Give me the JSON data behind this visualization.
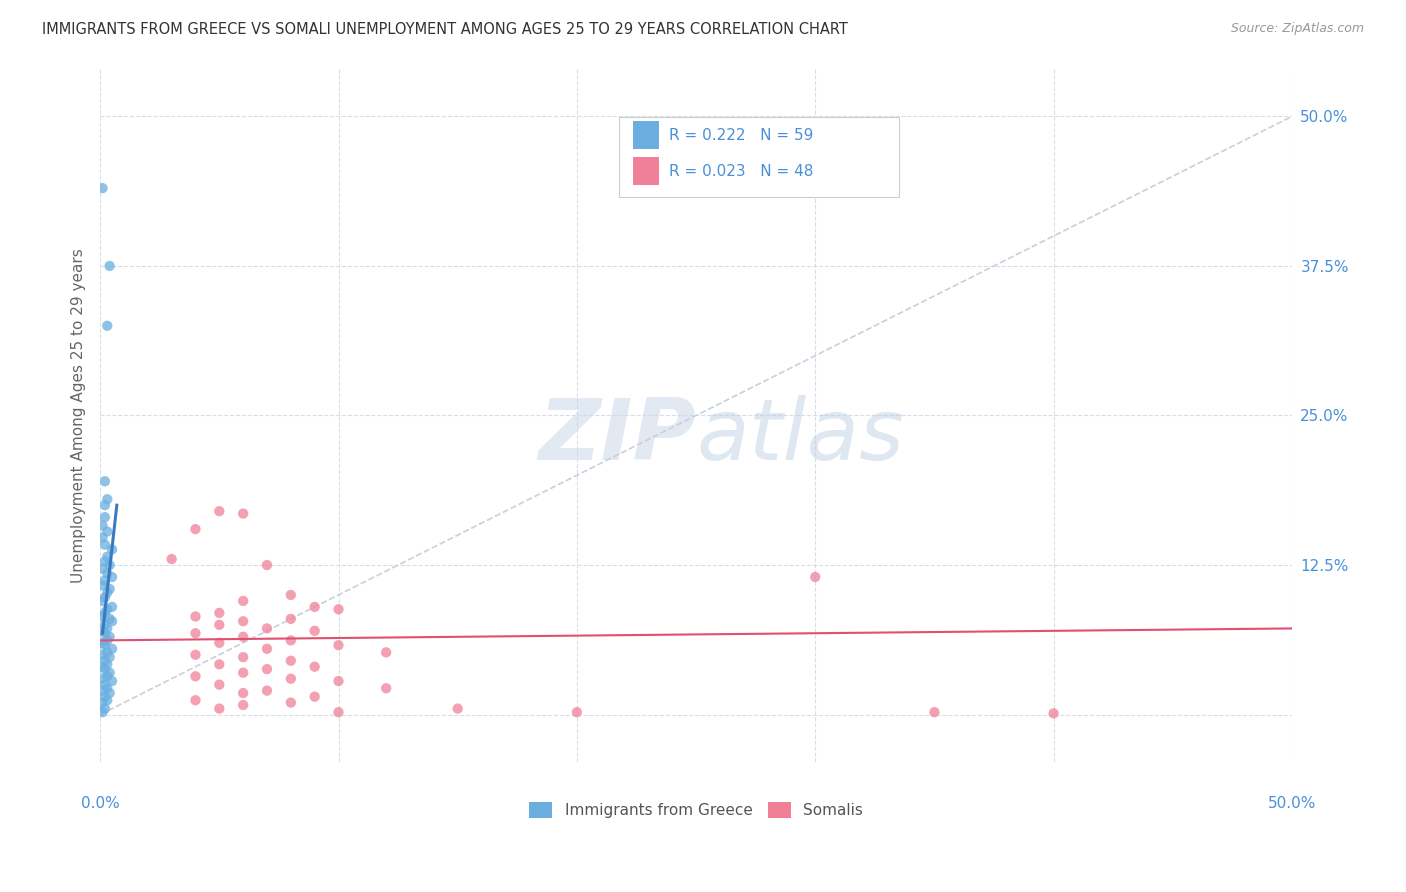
{
  "title": "IMMIGRANTS FROM GREECE VS SOMALI UNEMPLOYMENT AMONG AGES 25 TO 29 YEARS CORRELATION CHART",
  "source": "Source: ZipAtlas.com",
  "ylabel": "Unemployment Among Ages 25 to 29 years",
  "ytick_labels": [
    "",
    "12.5%",
    "25.0%",
    "37.5%",
    "50.0%"
  ],
  "ytick_values": [
    0.0,
    0.125,
    0.25,
    0.375,
    0.5
  ],
  "xtick_vals": [
    0.0,
    0.1,
    0.2,
    0.3,
    0.4,
    0.5
  ],
  "xmin": 0.0,
  "xmax": 0.5,
  "ymin": -0.04,
  "ymax": 0.54,
  "legend_label1": "Immigrants from Greece",
  "legend_label2": "Somalis",
  "blue_color": "#6aaee0",
  "pink_color": "#f08098",
  "blue_line_color": "#3a7abf",
  "pink_line_color": "#e05070",
  "dashed_line_color": "#c8d0dc",
  "grid_color": "#d8dde8",
  "blue_scatter": [
    [
      0.001,
      0.44
    ],
    [
      0.004,
      0.375
    ],
    [
      0.003,
      0.325
    ],
    [
      0.002,
      0.195
    ],
    [
      0.003,
      0.18
    ],
    [
      0.002,
      0.175
    ],
    [
      0.002,
      0.165
    ],
    [
      0.001,
      0.158
    ],
    [
      0.003,
      0.153
    ],
    [
      0.001,
      0.148
    ],
    [
      0.002,
      0.142
    ],
    [
      0.005,
      0.138
    ],
    [
      0.003,
      0.132
    ],
    [
      0.002,
      0.128
    ],
    [
      0.004,
      0.125
    ],
    [
      0.001,
      0.122
    ],
    [
      0.003,
      0.118
    ],
    [
      0.005,
      0.115
    ],
    [
      0.002,
      0.112
    ],
    [
      0.001,
      0.108
    ],
    [
      0.004,
      0.105
    ],
    [
      0.003,
      0.102
    ],
    [
      0.002,
      0.098
    ],
    [
      0.001,
      0.095
    ],
    [
      0.005,
      0.09
    ],
    [
      0.003,
      0.088
    ],
    [
      0.002,
      0.085
    ],
    [
      0.001,
      0.082
    ],
    [
      0.004,
      0.08
    ],
    [
      0.005,
      0.078
    ],
    [
      0.002,
      0.075
    ],
    [
      0.003,
      0.072
    ],
    [
      0.001,
      0.07
    ],
    [
      0.002,
      0.068
    ],
    [
      0.004,
      0.065
    ],
    [
      0.003,
      0.062
    ],
    [
      0.001,
      0.06
    ],
    [
      0.002,
      0.058
    ],
    [
      0.005,
      0.055
    ],
    [
      0.003,
      0.052
    ],
    [
      0.001,
      0.05
    ],
    [
      0.004,
      0.048
    ],
    [
      0.002,
      0.045
    ],
    [
      0.003,
      0.042
    ],
    [
      0.001,
      0.04
    ],
    [
      0.002,
      0.038
    ],
    [
      0.004,
      0.035
    ],
    [
      0.003,
      0.032
    ],
    [
      0.001,
      0.03
    ],
    [
      0.005,
      0.028
    ],
    [
      0.002,
      0.025
    ],
    [
      0.003,
      0.022
    ],
    [
      0.001,
      0.02
    ],
    [
      0.004,
      0.018
    ],
    [
      0.002,
      0.015
    ],
    [
      0.003,
      0.012
    ],
    [
      0.001,
      0.01
    ],
    [
      0.002,
      0.005
    ],
    [
      0.001,
      0.002
    ]
  ],
  "pink_scatter": [
    [
      0.05,
      0.17
    ],
    [
      0.06,
      0.168
    ],
    [
      0.04,
      0.155
    ],
    [
      0.03,
      0.13
    ],
    [
      0.07,
      0.125
    ],
    [
      0.08,
      0.1
    ],
    [
      0.06,
      0.095
    ],
    [
      0.09,
      0.09
    ],
    [
      0.1,
      0.088
    ],
    [
      0.05,
      0.085
    ],
    [
      0.04,
      0.082
    ],
    [
      0.08,
      0.08
    ],
    [
      0.06,
      0.078
    ],
    [
      0.05,
      0.075
    ],
    [
      0.07,
      0.072
    ],
    [
      0.09,
      0.07
    ],
    [
      0.04,
      0.068
    ],
    [
      0.06,
      0.065
    ],
    [
      0.08,
      0.062
    ],
    [
      0.05,
      0.06
    ],
    [
      0.1,
      0.058
    ],
    [
      0.07,
      0.055
    ],
    [
      0.12,
      0.052
    ],
    [
      0.04,
      0.05
    ],
    [
      0.06,
      0.048
    ],
    [
      0.08,
      0.045
    ],
    [
      0.05,
      0.042
    ],
    [
      0.09,
      0.04
    ],
    [
      0.07,
      0.038
    ],
    [
      0.06,
      0.035
    ],
    [
      0.04,
      0.032
    ],
    [
      0.08,
      0.03
    ],
    [
      0.1,
      0.028
    ],
    [
      0.05,
      0.025
    ],
    [
      0.12,
      0.022
    ],
    [
      0.07,
      0.02
    ],
    [
      0.06,
      0.018
    ],
    [
      0.09,
      0.015
    ],
    [
      0.3,
      0.115
    ],
    [
      0.04,
      0.012
    ],
    [
      0.08,
      0.01
    ],
    [
      0.06,
      0.008
    ],
    [
      0.05,
      0.005
    ],
    [
      0.1,
      0.002
    ],
    [
      0.15,
      0.005
    ],
    [
      0.2,
      0.002
    ],
    [
      0.35,
      0.002
    ],
    [
      0.4,
      0.001
    ]
  ],
  "blue_line_x": [
    0.001,
    0.007
  ],
  "blue_line_y": [
    0.068,
    0.175
  ],
  "pink_line_x": [
    0.0,
    0.5
  ],
  "pink_line_y": [
    0.062,
    0.072
  ]
}
